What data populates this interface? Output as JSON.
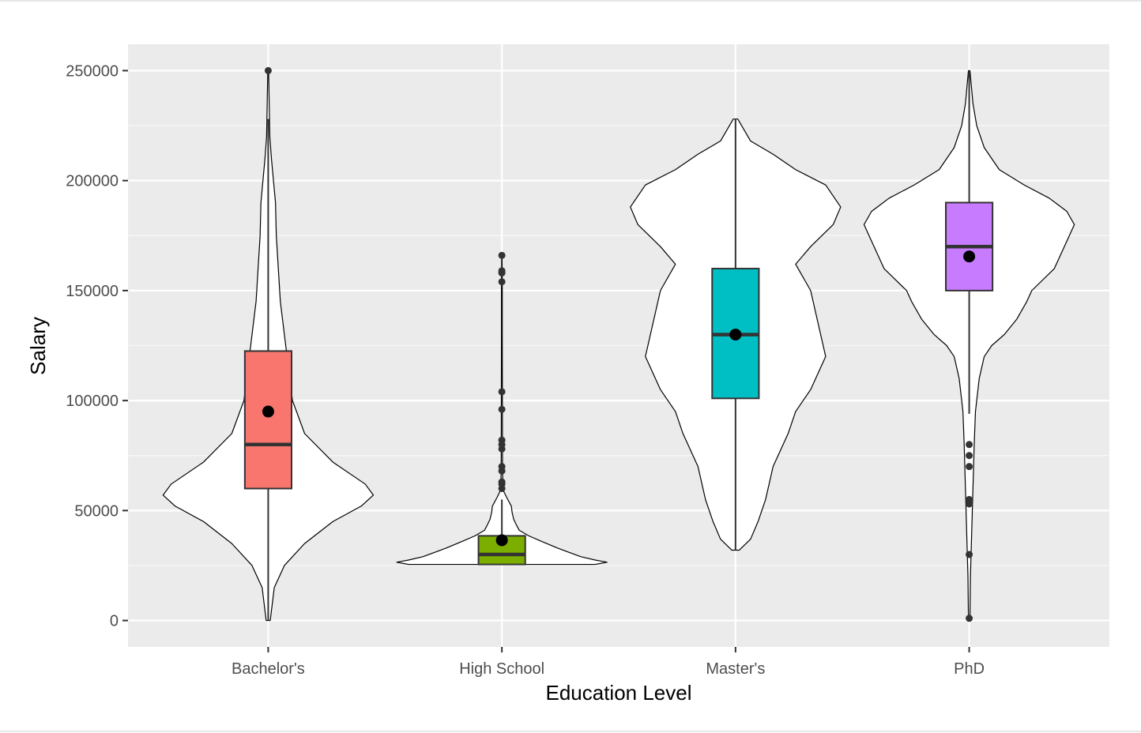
{
  "chart_data": {
    "type": "violin-box",
    "title": "",
    "xlabel": "Education Level",
    "ylabel": "Salary",
    "ylim": [
      -12000,
      262000
    ],
    "yticks": [
      0,
      50000,
      100000,
      150000,
      200000,
      250000
    ],
    "ytick_labels": [
      "0",
      "50000",
      "100000",
      "150000",
      "200000",
      "250000"
    ],
    "grid": true,
    "legend": "none",
    "colors": {
      "panel": "#ebebeb",
      "grid_major": "#ffffff",
      "grid_minor": "#f7f7f7",
      "violin_fill": "#ffffff",
      "violin_stroke": "#000000",
      "box_stroke": "#333333",
      "outlier": "#333333",
      "mean_point": "#000000"
    },
    "categories": [
      "Bachelor's",
      "High School",
      "Master's",
      "PhD"
    ],
    "groups": [
      {
        "category": "Bachelor's",
        "color": "#f8766d",
        "box": {
          "q1": 60000,
          "median": 80000,
          "q3": 122500,
          "whisker_low": 0,
          "whisker_high": 228000
        },
        "mean": 95000,
        "outliers": [
          250000
        ],
        "violin": {
          "min": 0,
          "max": 250000,
          "profile": [
            [
              0,
              0.5
            ],
            [
              15000,
              1.5
            ],
            [
              25000,
              4
            ],
            [
              35000,
              9
            ],
            [
              45000,
              16
            ],
            [
              52000,
              23
            ],
            [
              57000,
              26
            ],
            [
              62000,
              24
            ],
            [
              72000,
              16
            ],
            [
              85000,
              9
            ],
            [
              100000,
              6
            ],
            [
              115000,
              5
            ],
            [
              130000,
              4
            ],
            [
              145000,
              3
            ],
            [
              160000,
              2.5
            ],
            [
              175000,
              2
            ],
            [
              190000,
              1.8
            ],
            [
              200000,
              1.3
            ],
            [
              210000,
              0.8
            ],
            [
              220000,
              0.4
            ],
            [
              230000,
              0.3
            ],
            [
              250000,
              0.1
            ]
          ]
        }
      },
      {
        "category": "High School",
        "color": "#7cae00",
        "box": {
          "q1": 25500,
          "median": 30000,
          "q3": 38500,
          "whisker_low": 25500,
          "whisker_high": 55000
        },
        "mean": 36500,
        "outliers": [
          60000,
          62000,
          63000,
          68000,
          70000,
          78000,
          80000,
          82000,
          96000,
          104000,
          154000,
          158000,
          159000,
          166000
        ],
        "violin": {
          "min": 25500,
          "max": 166000,
          "profile": [
            [
              25500,
              118
            ],
            [
              26500,
              133
            ],
            [
              27500,
              118
            ],
            [
              29000,
              100
            ],
            [
              31000,
              85
            ],
            [
              33000,
              70
            ],
            [
              36000,
              50
            ],
            [
              38500,
              34
            ],
            [
              41000,
              22
            ],
            [
              43000,
              19
            ],
            [
              46000,
              15
            ],
            [
              49000,
              13
            ],
            [
              52000,
              12
            ],
            [
              56000,
              6
            ],
            [
              59000,
              2
            ],
            [
              62000,
              1.2
            ],
            [
              70000,
              0.8
            ],
            [
              90000,
              0.7
            ],
            [
              110000,
              0.6
            ],
            [
              130000,
              0.5
            ],
            [
              150000,
              0.5
            ],
            [
              166000,
              0.2
            ]
          ]
        }
      },
      {
        "category": "Master's",
        "color": "#00bfc4",
        "box": {
          "q1": 101000,
          "median": 130000,
          "q3": 160000,
          "whisker_low": 32000,
          "whisker_high": 228000
        },
        "mean": 130000,
        "outliers": [],
        "violin": {
          "min": 32000,
          "max": 228000,
          "profile": [
            [
              32000,
              0.5
            ],
            [
              37000,
              2
            ],
            [
              45000,
              3
            ],
            [
              55000,
              4
            ],
            [
              70000,
              5
            ],
            [
              85000,
              7
            ],
            [
              95000,
              8
            ],
            [
              105000,
              10
            ],
            [
              120000,
              12
            ],
            [
              135000,
              11
            ],
            [
              150000,
              10
            ],
            [
              162000,
              8
            ],
            [
              170000,
              10
            ],
            [
              180000,
              13
            ],
            [
              188000,
              14
            ],
            [
              198000,
              12
            ],
            [
              205000,
              8
            ],
            [
              212000,
              5
            ],
            [
              218000,
              2
            ],
            [
              228000,
              0.3
            ]
          ]
        }
      },
      {
        "category": "PhD",
        "color": "#c77cff",
        "box": {
          "q1": 150000,
          "median": 170000,
          "q3": 190000,
          "whisker_low": 94000,
          "whisker_high": 250000
        },
        "mean": 165500,
        "outliers": [
          1000,
          30000,
          53000,
          55000,
          70000,
          75000,
          80000
        ],
        "violin": {
          "min": 1000,
          "max": 250000,
          "profile": [
            [
              1000,
              0.3
            ],
            [
              20000,
              0.5
            ],
            [
              40000,
              1
            ],
            [
              60000,
              1.5
            ],
            [
              80000,
              2
            ],
            [
              95000,
              2.5
            ],
            [
              110000,
              4
            ],
            [
              120000,
              6
            ],
            [
              125000,
              9
            ],
            [
              130000,
              14
            ],
            [
              137000,
              19
            ],
            [
              145000,
              23
            ],
            [
              150000,
              25
            ],
            [
              160000,
              34
            ],
            [
              170000,
              38
            ],
            [
              180000,
              42
            ],
            [
              186000,
              39
            ],
            [
              192000,
              32
            ],
            [
              198000,
              22
            ],
            [
              205000,
              12
            ],
            [
              215000,
              6
            ],
            [
              225000,
              3
            ],
            [
              235000,
              1.5
            ],
            [
              250000,
              0.3
            ]
          ]
        }
      }
    ]
  }
}
